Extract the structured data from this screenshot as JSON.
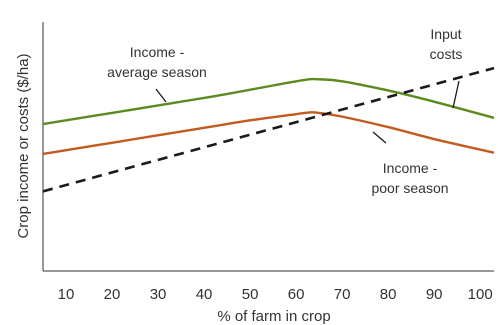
{
  "chart_data": {
    "type": "line",
    "title": "",
    "xlabel": "% of farm in crop",
    "ylabel": "Crop income or costs ($/ha)",
    "x_ticks": [
      10,
      20,
      30,
      40,
      50,
      60,
      70,
      80,
      90,
      100
    ],
    "xlim": [
      5,
      103
    ],
    "ylim": [
      0,
      100
    ],
    "y_ticks_shown": false,
    "grid": false,
    "legend": "none",
    "series": [
      {
        "name": "Income - average season",
        "color": "#5b8a1f",
        "line_style": "solid",
        "x": [
          5,
          20,
          40,
          55,
          62,
          65,
          70,
          80,
          90,
          103
        ],
        "y": [
          59,
          63.5,
          69.5,
          74.5,
          76.8,
          77,
          76.2,
          72.5,
          68,
          61.5
        ]
      },
      {
        "name": "Income - poor season",
        "color": "#c45a1f",
        "line_style": "solid",
        "x": [
          5,
          20,
          40,
          50,
          60,
          63,
          65,
          70,
          80,
          90,
          103
        ],
        "y": [
          47,
          51.5,
          57.5,
          60.5,
          63,
          63.7,
          63.5,
          62,
          57.8,
          53,
          47.5
        ]
      },
      {
        "name": "Input costs",
        "color": "#1a1a1a",
        "line_style": "dashed",
        "x": [
          5,
          103
        ],
        "y": [
          32,
          81.5
        ]
      }
    ],
    "annotations": [
      {
        "id": "average",
        "lines": [
          "Income -",
          "average season"
        ],
        "color": "#5b8a1f"
      },
      {
        "id": "costs",
        "lines": [
          "Input",
          "costs"
        ],
        "color": "#1a1a1a"
      },
      {
        "id": "poor",
        "lines": [
          "Income -",
          "poor season"
        ],
        "color": "#c45a1f"
      }
    ]
  }
}
